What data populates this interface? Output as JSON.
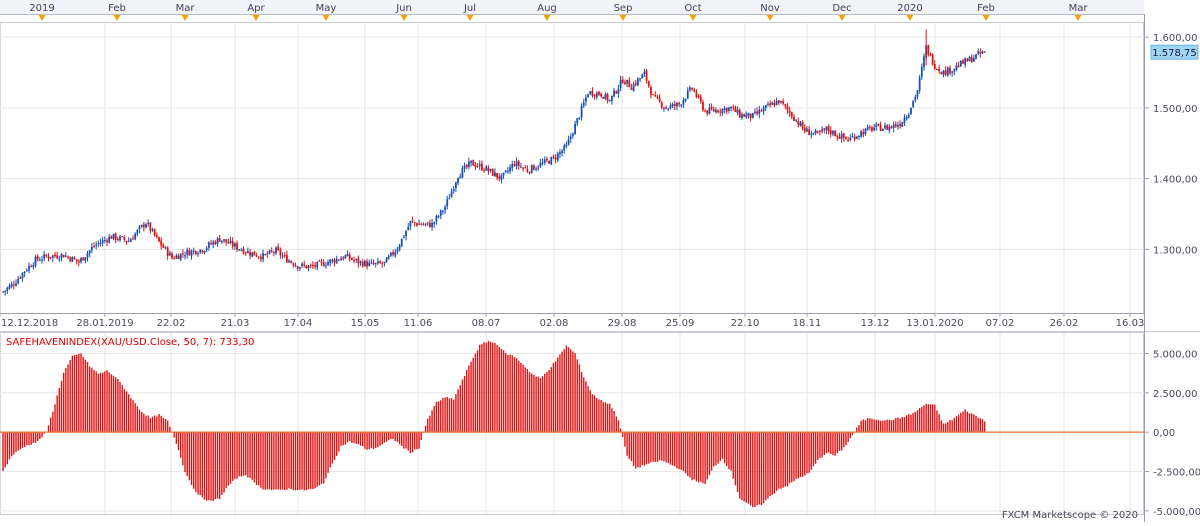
{
  "month_labels": [
    "2019",
    "Feb",
    "Mar",
    "Apr",
    "May",
    "Jun",
    "Jul",
    "Aug",
    "Sep",
    "Oct",
    "Nov",
    "Dec",
    "2020",
    "Feb",
    "Mar"
  ],
  "date_labels": [
    "12.12.2018",
    "28.01.2019",
    "22.02",
    "21.03",
    "17.04",
    "15.05",
    "11.06",
    "08.07",
    "02.08",
    "29.08",
    "25.09",
    "22.10",
    "18.11",
    "13.12",
    "13.01.2020",
    "07.02",
    "26.02",
    "16.03"
  ],
  "last_price": "1.578,75",
  "indicator_title": "SAFEHAVENINDEX(XAU/USD.Close, 50, 7): 733,30",
  "copyright": "FXCM Marketscope © 2020",
  "colors": {
    "up": "#1650b4",
    "down": "#e01010",
    "marker": "#f5a000",
    "indicator": "#e01010",
    "zero_line": "#f07030",
    "grid": "#e6e6e6",
    "price_tag": "#9fd4f2"
  },
  "chart_data": [
    {
      "type": "candlestick",
      "series": [
        {
          "name": "XAU/USD"
        }
      ],
      "y_ticks": [
        "1.300,00",
        "1.400,00",
        "1.500,00",
        "1.600,00"
      ],
      "ylim": [
        1210,
        1620
      ],
      "anchors": [
        [
          0,
          1240
        ],
        [
          5,
          1252
        ],
        [
          10,
          1270
        ],
        [
          15,
          1285
        ],
        [
          20,
          1290
        ],
        [
          28,
          1292
        ],
        [
          35,
          1282
        ],
        [
          42,
          1305
        ],
        [
          50,
          1318
        ],
        [
          58,
          1312
        ],
        [
          62,
          1325
        ],
        [
          66,
          1338
        ],
        [
          72,
          1310
        ],
        [
          78,
          1288
        ],
        [
          84,
          1295
        ],
        [
          92,
          1300
        ],
        [
          100,
          1315
        ],
        [
          108,
          1303
        ],
        [
          114,
          1295
        ],
        [
          120,
          1290
        ],
        [
          126,
          1298
        ],
        [
          130,
          1288
        ],
        [
          136,
          1277
        ],
        [
          142,
          1275
        ],
        [
          150,
          1282
        ],
        [
          158,
          1290
        ],
        [
          164,
          1282
        ],
        [
          170,
          1278
        ],
        [
          176,
          1280
        ],
        [
          182,
          1302
        ],
        [
          188,
          1338
        ],
        [
          194,
          1335
        ],
        [
          198,
          1335
        ],
        [
          204,
          1360
        ],
        [
          210,
          1405
        ],
        [
          216,
          1422
        ],
        [
          222,
          1415
        ],
        [
          230,
          1400
        ],
        [
          236,
          1422
        ],
        [
          242,
          1412
        ],
        [
          248,
          1420
        ],
        [
          254,
          1428
        ],
        [
          260,
          1445
        ],
        [
          266,
          1490
        ],
        [
          270,
          1522
        ],
        [
          276,
          1520
        ],
        [
          280,
          1510
        ],
        [
          286,
          1540
        ],
        [
          290,
          1530
        ],
        [
          296,
          1548
        ],
        [
          300,
          1515
        ],
        [
          306,
          1500
        ],
        [
          312,
          1505
        ],
        [
          318,
          1528
        ],
        [
          324,
          1495
        ],
        [
          330,
          1497
        ],
        [
          336,
          1500
        ],
        [
          340,
          1490
        ],
        [
          346,
          1488
        ],
        [
          352,
          1500
        ],
        [
          358,
          1510
        ],
        [
          364,
          1490
        ],
        [
          370,
          1468
        ],
        [
          376,
          1462
        ],
        [
          380,
          1470
        ],
        [
          386,
          1460
        ],
        [
          390,
          1455
        ],
        [
          396,
          1465
        ],
        [
          402,
          1472
        ],
        [
          408,
          1472
        ],
        [
          414,
          1478
        ],
        [
          418,
          1495
        ],
        [
          422,
          1525
        ],
        [
          426,
          1585
        ],
        [
          430,
          1560
        ],
        [
          434,
          1550
        ],
        [
          438,
          1555
        ],
        [
          442,
          1562
        ],
        [
          446,
          1568
        ],
        [
          450,
          1575
        ],
        [
          453,
          1578.75
        ]
      ],
      "ind_ticks": [
        "5.000,00",
        "2.500,00",
        "0,00",
        "-2.500,00",
        "-5.000,00"
      ],
      "ind_ylim": [
        -5200,
        6300
      ],
      "ind_anchors": [
        [
          0,
          -2500
        ],
        [
          4,
          -1500
        ],
        [
          10,
          -900
        ],
        [
          16,
          -600
        ],
        [
          20,
          0
        ],
        [
          24,
          1800
        ],
        [
          28,
          3800
        ],
        [
          32,
          4800
        ],
        [
          36,
          5000
        ],
        [
          40,
          4200
        ],
        [
          44,
          3700
        ],
        [
          48,
          3900
        ],
        [
          52,
          3500
        ],
        [
          56,
          2800
        ],
        [
          60,
          2000
        ],
        [
          64,
          1300
        ],
        [
          68,
          900
        ],
        [
          72,
          1100
        ],
        [
          76,
          700
        ],
        [
          80,
          -700
        ],
        [
          84,
          -2500
        ],
        [
          88,
          -3600
        ],
        [
          92,
          -4200
        ],
        [
          96,
          -4400
        ],
        [
          100,
          -4200
        ],
        [
          104,
          -3400
        ],
        [
          108,
          -2900
        ],
        [
          112,
          -2700
        ],
        [
          116,
          -3200
        ],
        [
          120,
          -3600
        ],
        [
          126,
          -3700
        ],
        [
          132,
          -3600
        ],
        [
          138,
          -3700
        ],
        [
          144,
          -3600
        ],
        [
          148,
          -3200
        ],
        [
          152,
          -2000
        ],
        [
          156,
          -900
        ],
        [
          160,
          -600
        ],
        [
          164,
          -800
        ],
        [
          168,
          -1100
        ],
        [
          172,
          -1000
        ],
        [
          176,
          -700
        ],
        [
          180,
          -400
        ],
        [
          184,
          -900
        ],
        [
          188,
          -1300
        ],
        [
          192,
          -1000
        ],
        [
          194,
          0
        ],
        [
          196,
          800
        ],
        [
          200,
          1900
        ],
        [
          204,
          2200
        ],
        [
          208,
          2100
        ],
        [
          212,
          3300
        ],
        [
          216,
          4500
        ],
        [
          220,
          5500
        ],
        [
          224,
          5800
        ],
        [
          228,
          5600
        ],
        [
          232,
          5000
        ],
        [
          236,
          4800
        ],
        [
          240,
          4300
        ],
        [
          244,
          3700
        ],
        [
          248,
          3400
        ],
        [
          252,
          4000
        ],
        [
          256,
          4700
        ],
        [
          260,
          5500
        ],
        [
          264,
          5000
        ],
        [
          268,
          3500
        ],
        [
          272,
          2400
        ],
        [
          276,
          2000
        ],
        [
          280,
          1800
        ],
        [
          284,
          800
        ],
        [
          288,
          -1500
        ],
        [
          292,
          -2300
        ],
        [
          298,
          -2000
        ],
        [
          304,
          -1800
        ],
        [
          312,
          -2300
        ],
        [
          318,
          -3000
        ],
        [
          324,
          -3300
        ],
        [
          328,
          -2200
        ],
        [
          332,
          -1700
        ],
        [
          336,
          -2500
        ],
        [
          340,
          -4200
        ],
        [
          346,
          -4800
        ],
        [
          350,
          -4600
        ],
        [
          354,
          -4100
        ],
        [
          358,
          -3600
        ],
        [
          362,
          -3400
        ],
        [
          366,
          -3000
        ],
        [
          372,
          -2600
        ],
        [
          376,
          -1800
        ],
        [
          380,
          -1300
        ],
        [
          384,
          -1500
        ],
        [
          388,
          -1000
        ],
        [
          392,
          -200
        ],
        [
          396,
          700
        ],
        [
          400,
          900
        ],
        [
          404,
          800
        ],
        [
          408,
          750
        ],
        [
          414,
          900
        ],
        [
          420,
          1200
        ],
        [
          426,
          1800
        ],
        [
          430,
          1700
        ],
        [
          434,
          500
        ],
        [
          438,
          800
        ],
        [
          444,
          1400
        ],
        [
          448,
          1100
        ],
        [
          453,
          733.3
        ]
      ]
    }
  ]
}
